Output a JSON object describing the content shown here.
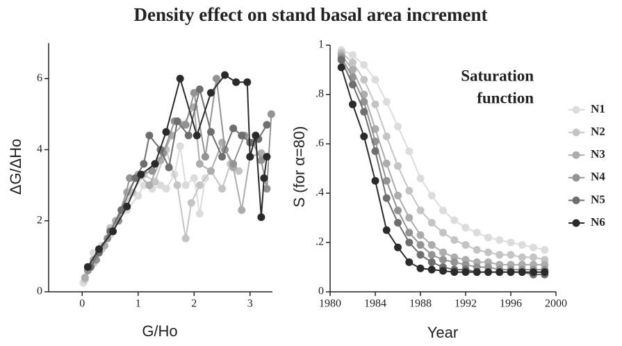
{
  "title": "Density effect on stand basal area increment",
  "chart_data": [
    {
      "type": "line",
      "xlabel": "G/Ho",
      "ylabel": "ΔG/ΔHo",
      "xlim": [
        -0.6,
        3.4
      ],
      "ylim": [
        0,
        7
      ],
      "xticks": [
        0,
        1,
        2,
        3
      ],
      "yticks": [
        0,
        2,
        4,
        6
      ],
      "series": [
        {
          "color": "#dcdcdc",
          "x": [
            0.02,
            0.1,
            0.2,
            0.35,
            0.5,
            0.65,
            0.8,
            1.0,
            1.1,
            1.25,
            1.4,
            1.5,
            1.65,
            1.75,
            1.85,
            2.0,
            2.1,
            2.2
          ],
          "values": [
            0.25,
            0.6,
            1.1,
            1.3,
            1.6,
            2.0,
            2.3,
            2.7,
            3.0,
            2.9,
            3.0,
            2.9,
            3.3,
            4.1,
            3.0,
            3.2,
            2.2,
            3.2
          ]
        },
        {
          "color": "#c4c4c4",
          "x": [
            0.05,
            0.2,
            0.35,
            0.5,
            0.7,
            0.9,
            1.1,
            1.3,
            1.5,
            1.7,
            1.85,
            1.95,
            2.1,
            2.3,
            2.5,
            2.65,
            2.8
          ],
          "values": [
            0.35,
            0.8,
            1.2,
            1.8,
            2.3,
            2.8,
            3.3,
            3.1,
            4.0,
            3.0,
            1.5,
            2.5,
            3.0,
            3.4,
            2.9,
            3.6,
            3.4
          ]
        },
        {
          "color": "#acacac",
          "x": [
            0.05,
            0.2,
            0.4,
            0.6,
            0.8,
            1.0,
            1.2,
            1.4,
            1.6,
            1.8,
            2.0,
            2.1,
            2.3,
            2.5,
            2.7,
            2.85,
            3.0,
            3.2
          ],
          "values": [
            0.4,
            0.9,
            1.3,
            2.0,
            2.8,
            3.3,
            3.0,
            3.7,
            4.4,
            4.7,
            5.2,
            3.6,
            3.4,
            4.2,
            3.5,
            2.3,
            3.8,
            3.9
          ]
        },
        {
          "color": "#939393",
          "x": [
            0.1,
            0.25,
            0.45,
            0.65,
            0.85,
            1.05,
            1.25,
            1.45,
            1.65,
            1.85,
            2.0,
            2.2,
            2.4,
            2.55,
            2.7,
            2.9,
            3.05,
            3.2,
            3.3,
            3.38
          ],
          "values": [
            0.6,
            0.9,
            1.5,
            2.0,
            3.2,
            3.3,
            3.4,
            3.9,
            4.8,
            4.7,
            5.6,
            3.8,
            6.0,
            4.0,
            3.6,
            4.4,
            4.2,
            3.7,
            2.9,
            5.0
          ]
        },
        {
          "color": "#6e6e6e",
          "x": [
            0.15,
            0.3,
            0.5,
            0.7,
            0.95,
            1.1,
            1.2,
            1.4,
            1.55,
            1.7,
            1.9,
            2.1,
            2.3,
            2.5,
            2.7,
            2.85,
            3.0,
            3.15,
            3.3
          ],
          "values": [
            0.7,
            1.1,
            1.7,
            2.3,
            3.2,
            3.6,
            4.4,
            4.0,
            3.5,
            4.8,
            4.4,
            5.7,
            4.5,
            3.8,
            4.6,
            4.4,
            4.2,
            4.3,
            4.7
          ]
        },
        {
          "color": "#2a2a2a",
          "x": [
            0.1,
            0.3,
            0.55,
            0.8,
            1.05,
            1.3,
            1.5,
            1.75,
            2.05,
            2.3,
            2.55,
            2.75,
            2.95,
            3.0,
            3.1,
            3.2,
            3.25,
            3.3
          ],
          "values": [
            0.7,
            1.2,
            1.7,
            2.4,
            3.3,
            3.6,
            4.5,
            6.0,
            4.4,
            5.6,
            6.1,
            5.9,
            5.9,
            3.8,
            4.4,
            2.1,
            3.2,
            3.8
          ]
        }
      ]
    },
    {
      "type": "line",
      "xlabel": "Year",
      "ylabel": "S (for α=80)",
      "annotation": [
        "Saturation",
        "function"
      ],
      "xlim": [
        1980,
        2000
      ],
      "ylim": [
        0,
        1
      ],
      "xticks": [
        1980,
        1984,
        1988,
        1992,
        1996,
        2000
      ],
      "yticks": [
        0,
        {
          "value": 0.2,
          "label": ".2"
        },
        {
          "value": 0.4,
          "label": ".4"
        },
        {
          "value": 0.6,
          "label": ".6"
        },
        {
          "value": 0.8,
          "label": ".8"
        },
        1
      ],
      "x": [
        1981,
        1982,
        1983,
        1984,
        1985,
        1986,
        1987,
        1988,
        1989,
        1990,
        1991,
        1992,
        1993,
        1994,
        1995,
        1996,
        1997,
        1998,
        1999
      ],
      "series": [
        {
          "name": "N1",
          "color": "#dcdcdc",
          "values": [
            0.98,
            0.96,
            0.92,
            0.86,
            0.77,
            0.67,
            0.57,
            0.46,
            0.39,
            0.33,
            0.29,
            0.26,
            0.24,
            0.22,
            0.21,
            0.2,
            0.19,
            0.18,
            0.17
          ]
        },
        {
          "name": "N2",
          "color": "#c4c4c4",
          "values": [
            0.97,
            0.93,
            0.86,
            0.76,
            0.63,
            0.51,
            0.41,
            0.33,
            0.28,
            0.24,
            0.21,
            0.19,
            0.17,
            0.16,
            0.15,
            0.15,
            0.14,
            0.14,
            0.13
          ]
        },
        {
          "name": "N3",
          "color": "#acacac",
          "values": [
            0.96,
            0.9,
            0.8,
            0.66,
            0.52,
            0.39,
            0.3,
            0.23,
            0.19,
            0.16,
            0.14,
            0.13,
            0.12,
            0.12,
            0.11,
            0.11,
            0.11,
            0.11,
            0.11
          ]
        },
        {
          "name": "N4",
          "color": "#939393",
          "values": [
            0.95,
            0.87,
            0.77,
            0.61,
            0.45,
            0.33,
            0.24,
            0.19,
            0.15,
            0.13,
            0.12,
            0.11,
            0.1,
            0.1,
            0.09,
            0.09,
            0.09,
            0.09,
            0.09
          ]
        },
        {
          "name": "N5",
          "color": "#6e6e6e",
          "values": [
            0.94,
            0.84,
            0.73,
            0.57,
            0.38,
            0.28,
            0.2,
            0.15,
            0.12,
            0.1,
            0.09,
            0.09,
            0.08,
            0.08,
            0.08,
            0.08,
            0.08,
            0.07,
            0.07
          ]
        },
        {
          "name": "N6",
          "color": "#2a2a2a",
          "values": [
            0.91,
            0.76,
            0.63,
            0.45,
            0.25,
            0.18,
            0.12,
            0.095,
            0.09,
            0.085,
            0.08,
            0.08,
            0.08,
            0.08,
            0.08,
            0.08,
            0.08,
            0.08,
            0.08
          ]
        }
      ]
    }
  ]
}
